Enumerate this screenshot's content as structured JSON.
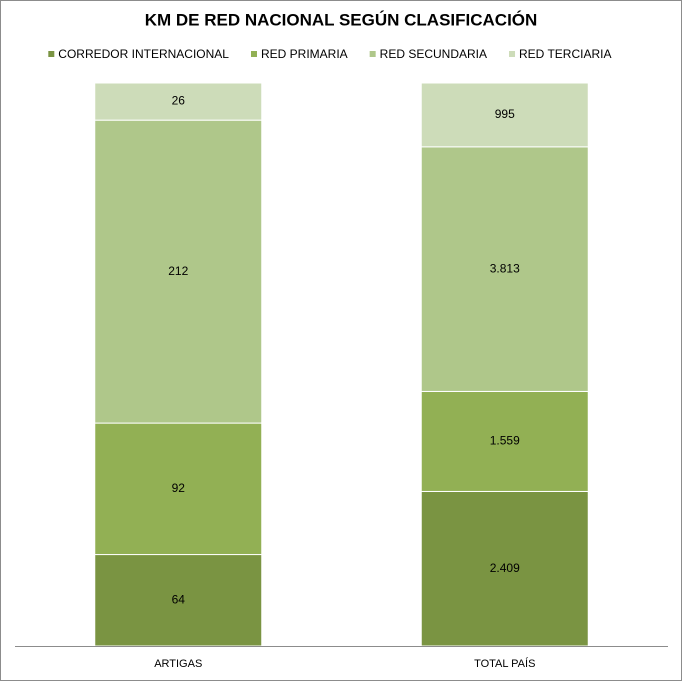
{
  "chart_data": {
    "type": "stacked_bar_100",
    "title": "KM DE RED NACIONAL SEGÚN CLASIFICACIÓN",
    "categories": [
      "ARTIGAS",
      "TOTAL PAÍS"
    ],
    "legend": "top",
    "series": [
      {
        "name": "CORREDOR INTERNACIONAL",
        "color": "#7a9442",
        "values": [
          64,
          2409
        ],
        "value_labels": [
          "64",
          "2.409"
        ]
      },
      {
        "name": "RED PRIMARIA",
        "color": "#92b054",
        "values": [
          92,
          1559
        ],
        "value_labels": [
          "92",
          "1.559"
        ]
      },
      {
        "name": "RED SECUNDARIA",
        "color": "#afc78a",
        "values": [
          212,
          3813
        ],
        "value_labels": [
          "212",
          "3.813"
        ]
      },
      {
        "name": "RED TERCIARIA",
        "color": "#cddcb9",
        "values": [
          26,
          995
        ]
      }
    ]
  }
}
